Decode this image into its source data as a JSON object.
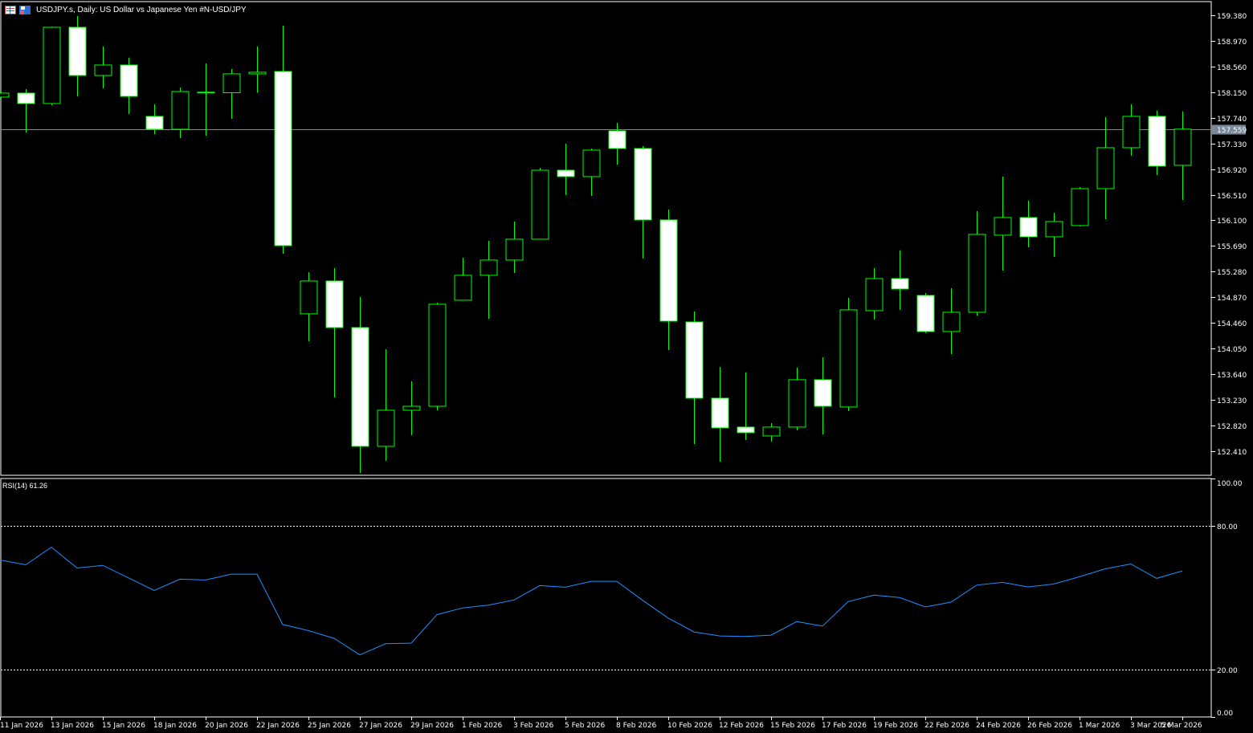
{
  "header": {
    "title": "USDJPY.s, Daily:  US Dollar vs  Japanese Yen #N-USD/JPY",
    "icons": [
      "symbol-list-icon",
      "save-template-icon"
    ]
  },
  "colors": {
    "background": "#000000",
    "candle_outline": "#00ff00",
    "bear_fill": "#ffffff",
    "bull_fill": "#000000",
    "rsi_line": "#1e90ff",
    "grid_frame": "#ffffff",
    "bid_line": "#778899"
  },
  "price_axis": {
    "ticks": [
      "159.380",
      "158.970",
      "158.560",
      "158.150",
      "157.740",
      "157.330",
      "156.920",
      "156.510",
      "156.100",
      "155.690",
      "155.280",
      "154.870",
      "154.460",
      "154.050",
      "153.640",
      "153.230",
      "152.820",
      "152.410"
    ],
    "current_price": "157.559"
  },
  "rsi_axis": {
    "ticks": [
      "100.00",
      "80.00",
      "20.00",
      "0.00"
    ]
  },
  "indicator": {
    "label": "RSI(14) 61.26"
  },
  "chart_data": [
    {
      "type": "candlestick",
      "title": "USDJPY.s, Daily",
      "ylim": [
        152.024,
        159.585
      ],
      "current_price": 157.559,
      "x_tick_labels": [
        "11 Jan 2026",
        "13 Jan 2026",
        "15 Jan 2026",
        "18 Jan 2026",
        "20 Jan 2026",
        "22 Jan 2026",
        "25 Jan 2026",
        "27 Jan 2026",
        "29 Jan 2026",
        "1 Feb 2026",
        "3 Feb 2026",
        "5 Feb 2026",
        "8 Feb 2026",
        "10 Feb 2026",
        "12 Feb 2026",
        "15 Feb 2026",
        "17 Feb 2026",
        "19 Feb 2026",
        "22 Feb 2026",
        "24 Feb 2026",
        "26 Feb 2026",
        "1 Mar 2026",
        "3 Mar 2026",
        "5 Mar 2026"
      ],
      "ohlc_fields": [
        "open",
        "high",
        "low",
        "close"
      ],
      "ohlc": [
        [
          158.071,
          158.16,
          158.05,
          158.135
        ],
        [
          158.135,
          158.199,
          157.506,
          157.968
        ],
        [
          157.968,
          159.2,
          157.942,
          159.187
        ],
        [
          159.187,
          159.367,
          158.083,
          158.417
        ],
        [
          158.417,
          158.879,
          158.212,
          158.584
        ],
        [
          158.584,
          158.7,
          157.801,
          158.083
        ],
        [
          157.763,
          157.955,
          157.48,
          157.557
        ],
        [
          157.557,
          158.225,
          157.416,
          158.16
        ],
        [
          158.148,
          158.61,
          157.454,
          158.15
        ],
        [
          158.141,
          158.52,
          157.724,
          158.443
        ],
        [
          158.443,
          158.879,
          158.141,
          158.469
        ],
        [
          158.481,
          159.213,
          155.567,
          155.696
        ],
        [
          154.605,
          155.272,
          154.168,
          155.131
        ],
        [
          155.131,
          155.336,
          153.27,
          154.386
        ],
        [
          154.386,
          154.874,
          152.063,
          152.487
        ],
        [
          152.487,
          154.04,
          152.255,
          153.064
        ],
        [
          153.064,
          153.526,
          152.666,
          153.128
        ],
        [
          153.128,
          154.784,
          153.064,
          154.759
        ],
        [
          154.823,
          155.503,
          154.823,
          155.221
        ],
        [
          155.221,
          155.773,
          154.528,
          155.465
        ],
        [
          155.465,
          156.081,
          155.259,
          155.799
        ],
        [
          155.799,
          156.941,
          155.799,
          156.902
        ],
        [
          156.902,
          157.326,
          156.505,
          156.8
        ],
        [
          156.8,
          157.249,
          156.492,
          157.223
        ],
        [
          157.531,
          157.66,
          156.992,
          157.249
        ],
        [
          157.249,
          157.288,
          155.49,
          156.107
        ],
        [
          156.107,
          156.273,
          154.027,
          154.489
        ],
        [
          154.476,
          154.643,
          152.525,
          153.257
        ],
        [
          153.257,
          153.757,
          152.243,
          152.782
        ],
        [
          152.795,
          153.668,
          152.589,
          152.705
        ],
        [
          152.653,
          152.859,
          152.564,
          152.795
        ],
        [
          152.795,
          153.745,
          152.743,
          153.552
        ],
        [
          153.552,
          153.911,
          152.679,
          153.128
        ],
        [
          153.116,
          154.861,
          153.051,
          154.669
        ],
        [
          154.656,
          155.336,
          154.515,
          155.169
        ],
        [
          155.169,
          155.619,
          154.669,
          155.003
        ],
        [
          154.9,
          154.938,
          154.297,
          154.322
        ],
        [
          154.322,
          155.015,
          153.963,
          154.63
        ],
        [
          154.63,
          156.248,
          154.579,
          155.876
        ],
        [
          155.863,
          156.8,
          155.298,
          156.145
        ],
        [
          156.145,
          156.415,
          155.67,
          155.837
        ],
        [
          155.837,
          156.222,
          155.516,
          156.081
        ],
        [
          156.017,
          156.633,
          156.004,
          156.607
        ],
        [
          156.607,
          157.75,
          156.119,
          157.262
        ],
        [
          157.262,
          157.955,
          157.134,
          157.763
        ],
        [
          157.763,
          157.852,
          156.825,
          156.967
        ],
        [
          156.98,
          157.84,
          156.427,
          157.559
        ]
      ]
    },
    {
      "type": "line",
      "title": "RSI(14)",
      "ylim": [
        0,
        100
      ],
      "levels": [
        20,
        80
      ],
      "values": [
        65.82,
        63.81,
        71.18,
        62.47,
        63.57,
        58.31,
        53.08,
        57.77,
        57.44,
        59.89,
        59.89,
        38.77,
        36.18,
        32.97,
        26.03,
        30.72,
        30.96,
        42.89,
        45.71,
        46.91,
        49.06,
        55.09,
        54.42,
        56.87,
        56.87,
        48.92,
        41.45,
        35.65,
        33.97,
        33.74,
        34.31,
        40.01,
        38.1,
        48.39,
        51.07,
        50.06,
        46.14,
        48.15,
        55.29,
        56.43,
        54.52,
        55.76,
        58.78,
        62.13,
        64.14,
        58.11,
        61.26
      ]
    }
  ]
}
